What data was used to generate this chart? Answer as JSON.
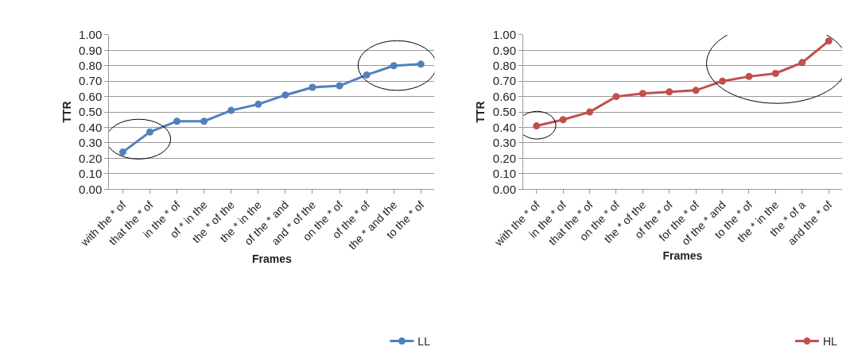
{
  "chart_data": [
    {
      "type": "line",
      "xlabel": "Frames",
      "ylabel": "TTR",
      "categories": [
        "with the * of",
        "that the * of",
        "in the * of",
        "of * in the",
        "the * of the",
        "the * in the",
        "of the * and",
        "and * of the",
        "on the * of",
        "of the * of",
        "the * and the",
        "to the * of"
      ],
      "series": [
        {
          "name": "LL",
          "color": "#4f81bd",
          "values": [
            0.24,
            0.37,
            0.44,
            0.44,
            0.51,
            0.55,
            0.61,
            0.66,
            0.67,
            0.74,
            0.8,
            0.81
          ]
        }
      ],
      "ylim": [
        0,
        1
      ],
      "yticks": [
        {
          "value": 0,
          "label": "0.00"
        },
        {
          "value": 0.1,
          "label": "0.10"
        },
        {
          "value": 0.2,
          "label": "0.20"
        },
        {
          "value": 0.3,
          "label": "0.30"
        },
        {
          "value": 0.4,
          "label": "0.40"
        },
        {
          "value": 0.5,
          "label": "0.50"
        },
        {
          "value": 0.6,
          "label": "0.60"
        },
        {
          "value": 0.7,
          "label": "0.70"
        },
        {
          "value": 0.8,
          "label": "0.80"
        },
        {
          "value": 0.9,
          "label": "0.90"
        },
        {
          "value": 1,
          "label": "1.00"
        }
      ],
      "grid": "y",
      "legend": "bottom right",
      "marker": "circle"
    },
    {
      "type": "line",
      "xlabel": "Frames",
      "ylabel": "TTR",
      "categories": [
        "with the * of",
        "in the * of",
        "that the * of",
        "on the * of",
        "the * of the",
        "of the * of",
        "for the * of",
        "of the * and",
        "to the * of",
        "the * in the",
        "the * of a",
        "and the * of"
      ],
      "series": [
        {
          "name": "HL",
          "color": "#c0504d",
          "values": [
            0.41,
            0.45,
            0.5,
            0.6,
            0.62,
            0.63,
            0.64,
            0.7,
            0.73,
            0.75,
            0.82,
            0.96
          ]
        }
      ],
      "ylim": [
        0,
        1
      ],
      "yticks": [
        {
          "value": 0,
          "label": "0.00"
        },
        {
          "value": 0.1,
          "label": "0.10"
        },
        {
          "value": 0.2,
          "label": "0.20"
        },
        {
          "value": 0.3,
          "label": "0.30"
        },
        {
          "value": 0.4,
          "label": "0.40"
        },
        {
          "value": 0.5,
          "label": "0.50"
        },
        {
          "value": 0.6,
          "label": "0.60"
        },
        {
          "value": 0.7,
          "label": "0.70"
        },
        {
          "value": 0.8,
          "label": "0.80"
        },
        {
          "value": 0.9,
          "label": "0.90"
        },
        {
          "value": 1,
          "label": "1.00"
        }
      ],
      "grid": "y",
      "legend": "bottom right",
      "marker": "circle"
    }
  ]
}
